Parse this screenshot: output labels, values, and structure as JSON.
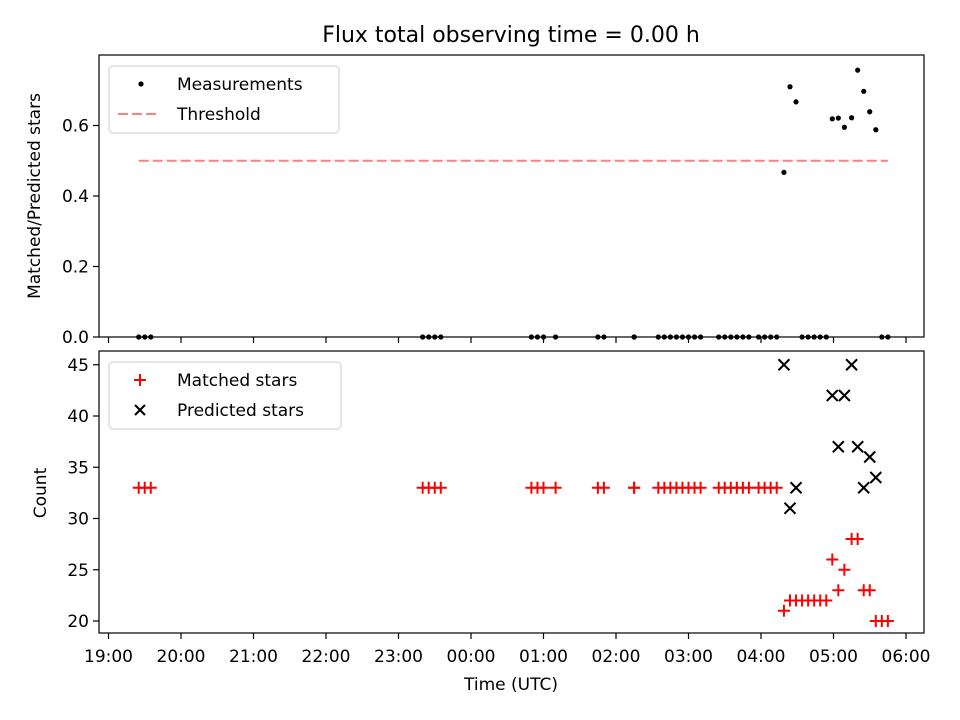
{
  "title": "Flux total observing time = 0.00 h",
  "chart_data": [
    {
      "type": "scatter",
      "panel": "top",
      "title": "Flux total observing time = 0.00 h",
      "xlabel": "",
      "ylabel": "Matched/Predicted stars",
      "x_axis": "time (UTC)",
      "xlim": [
        "19:00",
        "06:00"
      ],
      "ylim": [
        0,
        0.8
      ],
      "yticks": [
        "0.0",
        "0.2",
        "0.4",
        "0.6"
      ],
      "ytick_values": [
        0,
        0.2,
        0.4,
        0.6
      ],
      "legend": {
        "placement": "upper-left",
        "entries": [
          "Measurements",
          "Threshold"
        ]
      },
      "series": [
        {
          "name": "Measurements",
          "marker": "dot",
          "color": "#000000",
          "points": [
            {
              "x": "19:25",
              "y": 0
            },
            {
              "x": "19:30",
              "y": 0
            },
            {
              "x": "19:35",
              "y": 0
            },
            {
              "x": "23:20",
              "y": 0
            },
            {
              "x": "23:25",
              "y": 0
            },
            {
              "x": "23:30",
              "y": 0
            },
            {
              "x": "23:35",
              "y": 0
            },
            {
              "x": "00:50",
              "y": 0
            },
            {
              "x": "00:55",
              "y": 0
            },
            {
              "x": "01:00",
              "y": 0
            },
            {
              "x": "01:10",
              "y": 0
            },
            {
              "x": "01:45",
              "y": 0
            },
            {
              "x": "01:50",
              "y": 0
            },
            {
              "x": "02:15",
              "y": 0
            },
            {
              "x": "02:15",
              "y": 0
            },
            {
              "x": "02:35",
              "y": 0
            },
            {
              "x": "02:40",
              "y": 0
            },
            {
              "x": "02:45",
              "y": 0
            },
            {
              "x": "02:50",
              "y": 0
            },
            {
              "x": "02:55",
              "y": 0
            },
            {
              "x": "03:00",
              "y": 0
            },
            {
              "x": "03:05",
              "y": 0
            },
            {
              "x": "03:10",
              "y": 0
            },
            {
              "x": "03:25",
              "y": 0
            },
            {
              "x": "03:30",
              "y": 0
            },
            {
              "x": "03:35",
              "y": 0
            },
            {
              "x": "03:40",
              "y": 0
            },
            {
              "x": "03:45",
              "y": 0
            },
            {
              "x": "03:50",
              "y": 0
            },
            {
              "x": "03:58",
              "y": 0
            },
            {
              "x": "04:03",
              "y": 0
            },
            {
              "x": "04:08",
              "y": 0
            },
            {
              "x": "04:13",
              "y": 0
            },
            {
              "x": "04:19",
              "y": 0.467
            },
            {
              "x": "04:24",
              "y": 0.71
            },
            {
              "x": "04:29",
              "y": 0.667
            },
            {
              "x": "04:34",
              "y": 0
            },
            {
              "x": "04:39",
              "y": 0
            },
            {
              "x": "04:44",
              "y": 0
            },
            {
              "x": "04:49",
              "y": 0
            },
            {
              "x": "04:54",
              "y": 0
            },
            {
              "x": "04:59",
              "y": 0.619
            },
            {
              "x": "05:04",
              "y": 0.621
            },
            {
              "x": "05:09",
              "y": 0.595
            },
            {
              "x": "05:15",
              "y": 0.622
            },
            {
              "x": "05:20",
              "y": 0.757
            },
            {
              "x": "05:25",
              "y": 0.697
            },
            {
              "x": "05:30",
              "y": 0.639
            },
            {
              "x": "05:35",
              "y": 0.588
            },
            {
              "x": "05:40",
              "y": 0
            },
            {
              "x": "05:45",
              "y": 0
            }
          ]
        },
        {
          "name": "Threshold",
          "marker": "dashed-line",
          "color": "#ff7f7f",
          "points": [
            {
              "x": "19:25",
              "y": 0.5
            },
            {
              "x": "05:45",
              "y": 0.5
            }
          ]
        }
      ]
    },
    {
      "type": "scatter",
      "panel": "bottom",
      "xlabel": "Time (UTC)",
      "ylabel": "Count",
      "xlim": [
        "19:00",
        "06:00"
      ],
      "ylim": [
        19,
        46.5
      ],
      "xticks": [
        "19:00",
        "20:00",
        "21:00",
        "22:00",
        "23:00",
        "00:00",
        "01:00",
        "02:00",
        "03:00",
        "04:00",
        "05:00",
        "06:00"
      ],
      "yticks": [
        "20",
        "25",
        "30",
        "35",
        "40",
        "45"
      ],
      "ytick_values": [
        20,
        25,
        30,
        35,
        40,
        45
      ],
      "legend": {
        "placement": "upper-left",
        "entries": [
          "Matched stars",
          "Predicted stars"
        ]
      },
      "series": [
        {
          "name": "Matched stars",
          "marker": "plus",
          "color": "#ff0000",
          "points": [
            {
              "x": "19:25",
              "y": 33
            },
            {
              "x": "19:30",
              "y": 33
            },
            {
              "x": "19:35",
              "y": 33
            },
            {
              "x": "23:20",
              "y": 33
            },
            {
              "x": "23:25",
              "y": 33
            },
            {
              "x": "23:30",
              "y": 33
            },
            {
              "x": "23:35",
              "y": 33
            },
            {
              "x": "00:50",
              "y": 33
            },
            {
              "x": "00:55",
              "y": 33
            },
            {
              "x": "01:00",
              "y": 33
            },
            {
              "x": "01:10",
              "y": 33
            },
            {
              "x": "01:45",
              "y": 33
            },
            {
              "x": "01:50",
              "y": 33
            },
            {
              "x": "02:15",
              "y": 33
            },
            {
              "x": "02:15",
              "y": 33
            },
            {
              "x": "02:35",
              "y": 33
            },
            {
              "x": "02:40",
              "y": 33
            },
            {
              "x": "02:45",
              "y": 33
            },
            {
              "x": "02:50",
              "y": 33
            },
            {
              "x": "02:55",
              "y": 33
            },
            {
              "x": "03:00",
              "y": 33
            },
            {
              "x": "03:05",
              "y": 33
            },
            {
              "x": "03:10",
              "y": 33
            },
            {
              "x": "03:25",
              "y": 33
            },
            {
              "x": "03:30",
              "y": 33
            },
            {
              "x": "03:35",
              "y": 33
            },
            {
              "x": "03:40",
              "y": 33
            },
            {
              "x": "03:45",
              "y": 33
            },
            {
              "x": "03:50",
              "y": 33
            },
            {
              "x": "03:58",
              "y": 33
            },
            {
              "x": "04:03",
              "y": 33
            },
            {
              "x": "04:08",
              "y": 33
            },
            {
              "x": "04:13",
              "y": 33
            },
            {
              "x": "04:19",
              "y": 21
            },
            {
              "x": "04:24",
              "y": 22
            },
            {
              "x": "04:29",
              "y": 22
            },
            {
              "x": "04:34",
              "y": 22
            },
            {
              "x": "04:39",
              "y": 22
            },
            {
              "x": "04:44",
              "y": 22
            },
            {
              "x": "04:49",
              "y": 22
            },
            {
              "x": "04:54",
              "y": 22
            },
            {
              "x": "04:59",
              "y": 26
            },
            {
              "x": "05:04",
              "y": 23
            },
            {
              "x": "05:09",
              "y": 25
            },
            {
              "x": "05:15",
              "y": 28
            },
            {
              "x": "05:20",
              "y": 28
            },
            {
              "x": "05:25",
              "y": 23
            },
            {
              "x": "05:30",
              "y": 23
            },
            {
              "x": "05:35",
              "y": 20
            },
            {
              "x": "05:40",
              "y": 20
            },
            {
              "x": "05:45",
              "y": 20
            }
          ]
        },
        {
          "name": "Predicted stars",
          "marker": "x",
          "color": "#000000",
          "points": [
            {
              "x": "04:19",
              "y": 45
            },
            {
              "x": "04:24",
              "y": 31
            },
            {
              "x": "04:29",
              "y": 33
            },
            {
              "x": "04:59",
              "y": 42
            },
            {
              "x": "05:04",
              "y": 37
            },
            {
              "x": "05:09",
              "y": 42
            },
            {
              "x": "05:15",
              "y": 45
            },
            {
              "x": "05:20",
              "y": 37
            },
            {
              "x": "05:25",
              "y": 33
            },
            {
              "x": "05:30",
              "y": 36
            },
            {
              "x": "05:35",
              "y": 34
            }
          ]
        }
      ]
    }
  ]
}
